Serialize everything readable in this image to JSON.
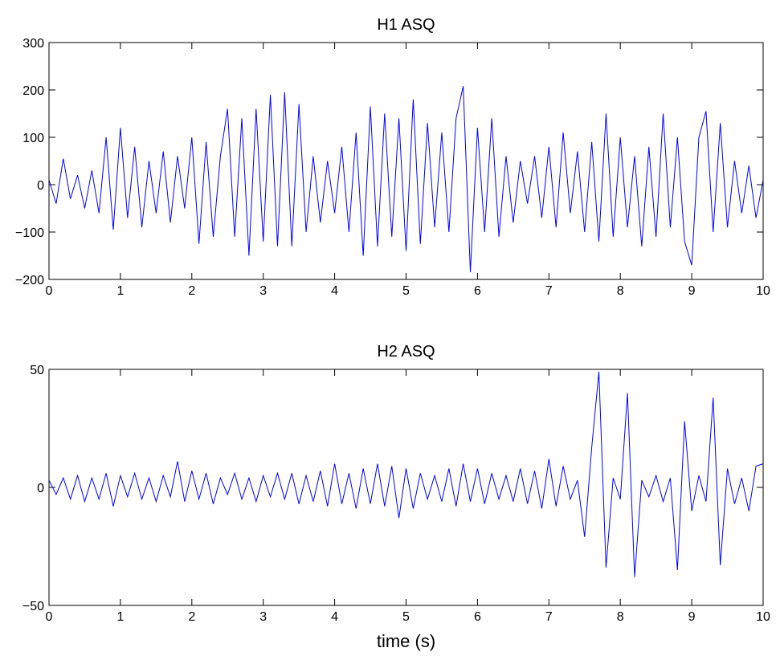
{
  "chart_data": [
    {
      "type": "line",
      "title": "H1 ASQ",
      "x": [
        0,
        0.1,
        0.2,
        0.3,
        0.4,
        0.5,
        0.6,
        0.7,
        0.8,
        0.9,
        1,
        1.1,
        1.2,
        1.3,
        1.4,
        1.5,
        1.6,
        1.7,
        1.8,
        1.9,
        2,
        2.1,
        2.2,
        2.3,
        2.4,
        2.5,
        2.6,
        2.7,
        2.8,
        2.9,
        3,
        3.1,
        3.2,
        3.3,
        3.4,
        3.5,
        3.6,
        3.7,
        3.8,
        3.9,
        4,
        4.1,
        4.2,
        4.3,
        4.4,
        4.5,
        4.6,
        4.7,
        4.8,
        4.9,
        5,
        5.1,
        5.2,
        5.3,
        5.4,
        5.5,
        5.6,
        5.7,
        5.8,
        5.9,
        6,
        6.1,
        6.2,
        6.3,
        6.4,
        6.5,
        6.6,
        6.7,
        6.8,
        6.9,
        7,
        7.1,
        7.2,
        7.3,
        7.4,
        7.5,
        7.6,
        7.7,
        7.8,
        7.9,
        8,
        8.1,
        8.2,
        8.3,
        8.4,
        8.5,
        8.6,
        8.7,
        8.8,
        8.9,
        9,
        9.1,
        9.2,
        9.3,
        9.4,
        9.5,
        9.6,
        9.7,
        9.8,
        9.9,
        10
      ],
      "values": [
        10,
        -40,
        55,
        -30,
        20,
        -50,
        30,
        -60,
        100,
        -95,
        120,
        -70,
        80,
        -90,
        50,
        -60,
        70,
        -80,
        60,
        -50,
        100,
        -125,
        90,
        -110,
        60,
        160,
        -110,
        140,
        -150,
        160,
        -120,
        190,
        -130,
        195,
        -130,
        170,
        -100,
        60,
        -80,
        50,
        -60,
        80,
        -100,
        110,
        -150,
        165,
        -130,
        150,
        -110,
        140,
        -140,
        180,
        -125,
        130,
        -90,
        110,
        -100,
        140,
        208,
        -185,
        120,
        -100,
        140,
        -110,
        60,
        -80,
        50,
        -40,
        60,
        -70,
        80,
        -90,
        110,
        -60,
        70,
        -100,
        90,
        -120,
        150,
        -110,
        100,
        -90,
        60,
        -130,
        80,
        -110,
        150,
        -90,
        100,
        -120,
        -170,
        100,
        155,
        -100,
        130,
        -90,
        50,
        -60,
        40,
        -70,
        10
      ],
      "color": "#0000ff",
      "xlim": [
        0,
        10
      ],
      "xticks": [
        0,
        1,
        2,
        3,
        4,
        5,
        6,
        7,
        8,
        9,
        10
      ],
      "ylim": [
        -200,
        300
      ],
      "yticks": [
        {
          "value": -200,
          "label": "−200"
        },
        {
          "value": -100,
          "label": "−100"
        },
        0,
        100,
        200,
        300
      ]
    },
    {
      "type": "line",
      "title": "H2 ASQ",
      "xlabel": "time (s)",
      "x": [
        0,
        0.1,
        0.2,
        0.3,
        0.4,
        0.5,
        0.6,
        0.7,
        0.8,
        0.9,
        1,
        1.1,
        1.2,
        1.3,
        1.4,
        1.5,
        1.6,
        1.7,
        1.8,
        1.9,
        2,
        2.1,
        2.2,
        2.3,
        2.4,
        2.5,
        2.6,
        2.7,
        2.8,
        2.9,
        3,
        3.1,
        3.2,
        3.3,
        3.4,
        3.5,
        3.6,
        3.7,
        3.8,
        3.9,
        4,
        4.1,
        4.2,
        4.3,
        4.4,
        4.5,
        4.6,
        4.7,
        4.8,
        4.9,
        5,
        5.1,
        5.2,
        5.3,
        5.4,
        5.5,
        5.6,
        5.7,
        5.8,
        5.9,
        6,
        6.1,
        6.2,
        6.3,
        6.4,
        6.5,
        6.6,
        6.7,
        6.8,
        6.9,
        7,
        7.1,
        7.2,
        7.3,
        7.4,
        7.5,
        7.6,
        7.7,
        7.8,
        7.9,
        8,
        8.1,
        8.2,
        8.3,
        8.4,
        8.5,
        8.6,
        8.7,
        8.8,
        8.9,
        9,
        9.1,
        9.2,
        9.3,
        9.4,
        9.5,
        9.6,
        9.7,
        9.8,
        9.9,
        10
      ],
      "values": [
        3,
        -3,
        4,
        -5,
        5,
        -6,
        4,
        -5,
        6,
        -8,
        5,
        -4,
        6,
        -5,
        4,
        -6,
        5,
        -4,
        11,
        -6,
        7,
        -5,
        6,
        -7,
        4,
        -3,
        6,
        -5,
        4,
        -6,
        5,
        -4,
        6,
        -5,
        6,
        -7,
        5,
        -6,
        7,
        -8,
        10,
        -7,
        6,
        -9,
        8,
        -7,
        10,
        -8,
        9,
        -13,
        8,
        -9,
        6,
        -5,
        5,
        -6,
        8,
        -8,
        10,
        -6,
        8,
        -7,
        6,
        -5,
        5,
        -6,
        8,
        -7,
        7,
        -9,
        12,
        -8,
        9,
        -5,
        3,
        -21,
        17,
        49,
        -34,
        4,
        -5,
        40,
        -38,
        3,
        -4,
        5,
        -6,
        4,
        -35,
        28,
        -10,
        5,
        -6,
        38,
        -33,
        8,
        -7,
        4,
        -10,
        9,
        10
      ],
      "color": "#0000ff",
      "xlim": [
        0,
        10
      ],
      "xticks": [
        0,
        1,
        2,
        3,
        4,
        5,
        6,
        7,
        8,
        9,
        10
      ],
      "ylim": [
        -50,
        50
      ],
      "yticks": [
        {
          "value": -50,
          "label": "−50"
        },
        0,
        50
      ]
    }
  ]
}
